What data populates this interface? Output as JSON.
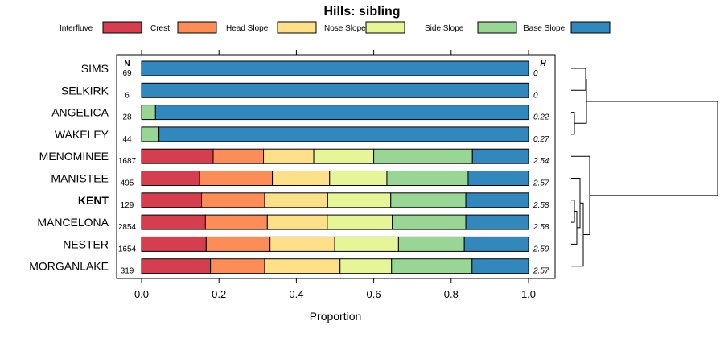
{
  "chart_data": {
    "type": "stacked-bar-horizontal",
    "title": "Hills: sibling",
    "xlabel": "Proportion",
    "xlim": [
      0,
      1
    ],
    "xticks": [
      "0.0",
      "0.2",
      "0.4",
      "0.6",
      "0.8",
      "1.0"
    ],
    "n_header": "N",
    "h_header": "H",
    "legend": [
      {
        "name": "Interfluve",
        "color": "#d53e4f"
      },
      {
        "name": "Crest",
        "color": "#fc8d59"
      },
      {
        "name": "Head Slope",
        "color": "#fee08b"
      },
      {
        "name": "Nose Slope",
        "color": "#e6f598"
      },
      {
        "name": "Side Slope",
        "color": "#99d594"
      },
      {
        "name": "Base Slope",
        "color": "#3288bd"
      }
    ],
    "rows": [
      {
        "label": "SIMS",
        "n": "69",
        "h": "0",
        "bold": false,
        "values": [
          0,
          0,
          0,
          0,
          0,
          1.0
        ]
      },
      {
        "label": "SELKIRK",
        "n": "6",
        "h": "0",
        "bold": false,
        "values": [
          0,
          0,
          0,
          0,
          0,
          1.0
        ]
      },
      {
        "label": "ANGELICA",
        "n": "28",
        "h": "0.22",
        "bold": false,
        "values": [
          0,
          0,
          0,
          0,
          0.036,
          0.964
        ]
      },
      {
        "label": "WAKELEY",
        "n": "44",
        "h": "0.27",
        "bold": false,
        "values": [
          0,
          0,
          0,
          0,
          0.045,
          0.955
        ]
      },
      {
        "label": "MENOMINEE",
        "n": "1687",
        "h": "2.54",
        "bold": false,
        "values": [
          0.185,
          0.13,
          0.13,
          0.155,
          0.255,
          0.145
        ]
      },
      {
        "label": "MANISTEE",
        "n": "495",
        "h": "2.57",
        "bold": false,
        "values": [
          0.15,
          0.188,
          0.148,
          0.148,
          0.21,
          0.156
        ]
      },
      {
        "label": "KENT",
        "n": "129",
        "h": "2.58",
        "bold": true,
        "values": [
          0.155,
          0.163,
          0.163,
          0.163,
          0.194,
          0.162
        ]
      },
      {
        "label": "MANCELONA",
        "n": "2854",
        "h": "2.58",
        "bold": false,
        "values": [
          0.165,
          0.16,
          0.155,
          0.168,
          0.19,
          0.162
        ]
      },
      {
        "label": "NESTER",
        "n": "1654",
        "h": "2.59",
        "bold": false,
        "values": [
          0.167,
          0.165,
          0.167,
          0.165,
          0.17,
          0.166
        ]
      },
      {
        "label": "MORGANLAKE",
        "n": "319",
        "h": "2.57",
        "bold": false,
        "values": [
          0.178,
          0.14,
          0.195,
          0.133,
          0.208,
          0.146
        ]
      }
    ]
  }
}
